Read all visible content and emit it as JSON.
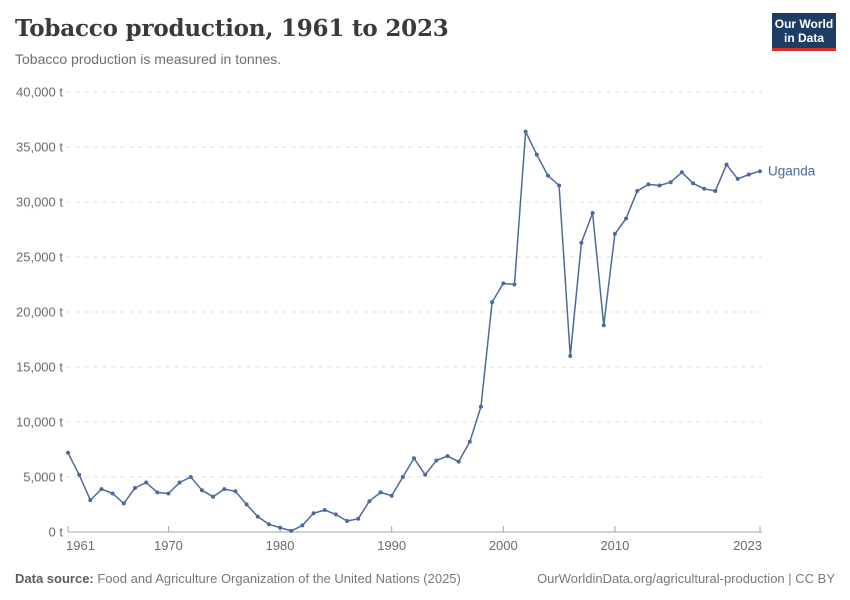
{
  "header": {
    "title": "Tobacco production, 1961 to 2023",
    "subtitle": "Tobacco production is measured in tonnes."
  },
  "logo": {
    "line1": "Our World",
    "line2": "in Data"
  },
  "footer": {
    "source_label": "Data source:",
    "source_text": " Food and Agriculture Organization of the United Nations (2025)",
    "right_text": "OurWorldinData.org/agricultural-production | CC BY"
  },
  "chart_data": {
    "type": "line",
    "title": "Tobacco production, 1961 to 2023",
    "subtitle": "Tobacco production is measured in tonnes.",
    "unit_suffix": " t",
    "xlim": [
      1961,
      2023
    ],
    "ylim": [
      0,
      40000
    ],
    "x_ticks": [
      1961,
      1970,
      1980,
      1990,
      2000,
      2010,
      2023
    ],
    "y_ticks": [
      0,
      5000,
      10000,
      15000,
      20000,
      25000,
      30000,
      35000,
      40000
    ],
    "grid": "horizontal-dashed",
    "legend_position": "end-of-line-label",
    "colors": {
      "line": "#4C6A9C",
      "grid": "#e0e0e0",
      "axis": "#a5a5a5",
      "tick_text": "#6b6b6b"
    },
    "x": [
      1961,
      1962,
      1963,
      1964,
      1965,
      1966,
      1967,
      1968,
      1969,
      1970,
      1971,
      1972,
      1973,
      1974,
      1975,
      1976,
      1977,
      1978,
      1979,
      1980,
      1981,
      1982,
      1983,
      1984,
      1985,
      1986,
      1987,
      1988,
      1989,
      1990,
      1991,
      1992,
      1993,
      1994,
      1995,
      1996,
      1997,
      1998,
      1999,
      2000,
      2001,
      2002,
      2003,
      2004,
      2005,
      2006,
      2007,
      2008,
      2009,
      2010,
      2011,
      2012,
      2013,
      2014,
      2015,
      2016,
      2017,
      2018,
      2019,
      2020,
      2021,
      2022,
      2023
    ],
    "series": [
      {
        "name": "Uganda",
        "values": [
          7200,
          5200,
          2900,
          3900,
          3500,
          2600,
          4000,
          4500,
          3600,
          3500,
          4500,
          5000,
          3800,
          3200,
          3900,
          3700,
          2500,
          1400,
          700,
          400,
          100,
          600,
          1700,
          2000,
          1600,
          1000,
          1200,
          2800,
          3600,
          3300,
          5000,
          6700,
          5200,
          6500,
          6900,
          6400,
          8200,
          11400,
          20900,
          22600,
          22500,
          36400,
          34300,
          32400,
          31500,
          16000,
          26300,
          29000,
          18800,
          27100,
          28500,
          31000,
          31600,
          31500,
          31800,
          32700,
          31700,
          31200,
          31000,
          33400,
          32100,
          32500,
          32800
        ]
      }
    ]
  }
}
